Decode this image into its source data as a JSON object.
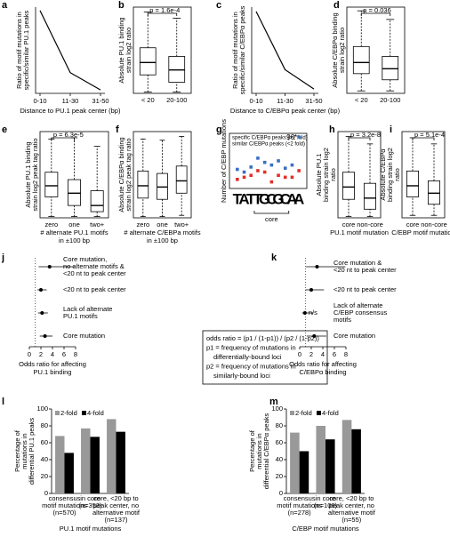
{
  "chart_data": [
    {
      "panel": "a",
      "type": "line",
      "categories": [
        "0-10",
        "11-30",
        "31-50"
      ],
      "values": [
        4.4,
        2.6,
        2.1
      ],
      "ylim": [
        2,
        4.5
      ],
      "color": "#000000",
      "ylabel": [
        "Ratio of motif mutations in",
        "specific/similar PU.1 peaks"
      ],
      "xlabel": [
        "Distance to PU.1 peak center (bp)"
      ]
    },
    {
      "panel": "b",
      "type": "box",
      "categories": [
        "< 20",
        "20-100"
      ],
      "ylim": [
        0,
        7
      ],
      "ptext": "p = 1.6e-4",
      "boxes": [
        {
          "low": 0.1,
          "q1": 1.5,
          "median": 2.5,
          "q3": 3.7,
          "high": 6.6
        },
        {
          "low": 0.1,
          "q1": 0.9,
          "median": 1.9,
          "q3": 3.0,
          "high": 6.1
        }
      ],
      "ylabel": [
        "Absolute PU.1 binding",
        "strain log2 ratio"
      ]
    },
    {
      "panel": "c",
      "type": "line",
      "categories": [
        "0-10",
        "11-30",
        "31-50"
      ],
      "values": [
        5.0,
        2.3,
        1.4
      ],
      "ylim": [
        1.2,
        5.2
      ],
      "color": "#000000",
      "ylabel": [
        "Ratio of motif mutations in",
        "specific/similar C/EBPα peaks"
      ],
      "xlabel": [
        "Distance to C/EBPα peak center (bp)"
      ]
    },
    {
      "panel": "d",
      "type": "box",
      "categories": [
        "< 20",
        "20-100"
      ],
      "ylim": [
        0,
        7
      ],
      "ptext": "p = 0.036",
      "boxes": [
        {
          "low": 0.2,
          "q1": 1.6,
          "median": 2.5,
          "q3": 3.8,
          "high": 6.7
        },
        {
          "low": 0.2,
          "q1": 1.1,
          "median": 2.0,
          "q3": 3.0,
          "high": 6.0
        }
      ],
      "ylabel": [
        "Absolute C/EBPα binding",
        "strain log2 ratio"
      ]
    },
    {
      "panel": "e",
      "type": "box",
      "categories": [
        "zero",
        "one",
        "two+"
      ],
      "ylim": [
        0,
        7
      ],
      "ptext": "p = 6.3e-5",
      "boxes": [
        {
          "low": 0.1,
          "q1": 1.7,
          "median": 2.6,
          "q3": 3.7,
          "high": 6.4
        },
        {
          "low": 0.1,
          "q1": 1.0,
          "median": 2.0,
          "q3": 3.1,
          "high": 6.5
        },
        {
          "low": 0.1,
          "q1": 0.5,
          "median": 1.0,
          "q3": 2.2,
          "high": 5.8
        }
      ],
      "ylabel": [
        "Absolute PU.1 binding",
        "strain log2 peak tag ratio"
      ],
      "xlabel": [
        "# alternate PU.1 motifs",
        "in ±100 bp"
      ]
    },
    {
      "panel": "f",
      "type": "box",
      "categories": [
        "zero",
        "one",
        "two+"
      ],
      "ylim": [
        0,
        7
      ],
      "ptext": "",
      "boxes": [
        {
          "low": 0.1,
          "q1": 1.6,
          "median": 2.6,
          "q3": 3.8,
          "high": 6.4
        },
        {
          "low": 0.1,
          "q1": 1.5,
          "median": 2.5,
          "q3": 3.6,
          "high": 6.3
        },
        {
          "low": 0.2,
          "q1": 2.0,
          "median": 3.0,
          "q3": 4.2,
          "high": 6.6
        }
      ],
      "ylabel": [
        "Absolute C/EBPα binding",
        "strain log2 peak tag ratio"
      ],
      "xlabel": [
        "# alternate C/EBPa motifs",
        "in ±100 bp"
      ]
    },
    {
      "panel": "g",
      "type": "scatter",
      "categories": [
        "T",
        "A",
        "T",
        "T",
        "G",
        "C",
        "G",
        "C",
        "A",
        "A"
      ],
      "ylim": [
        4,
        120
      ],
      "log_scale": true,
      "ylabel": [
        "Number of C/EBP mutations"
      ],
      "xlabel": [
        "core"
      ],
      "annotation": "96*",
      "series": [
        {
          "name": "specific C/EBPα peaks (>2 fold)",
          "color": "#3a6fc4",
          "values": [
            13,
            11,
            15,
            26,
            20,
            17,
            22,
            14,
            17,
            96
          ]
        },
        {
          "name": "similar C/EBPα peaks (<2 fold)",
          "color": "#e0302a",
          "values": [
            7,
            8,
            9,
            12,
            11,
            6,
            9,
            8,
            8,
            12
          ]
        }
      ]
    },
    {
      "panel": "h",
      "type": "box",
      "categories": [
        "core",
        "non-core"
      ],
      "ylim": [
        0,
        7
      ],
      "ptext": "p = 3.2e-8",
      "boxes": [
        {
          "low": 0.1,
          "q1": 1.5,
          "median": 2.5,
          "q3": 3.7,
          "high": 6.6
        },
        {
          "low": 0.1,
          "q1": 0.7,
          "median": 1.6,
          "q3": 2.8,
          "high": 6.0
        }
      ],
      "ylabel": [
        "Absolute PU.1",
        "binding strain log2",
        "ratio"
      ],
      "xlabel": [
        "PU.1 motif mutation"
      ]
    },
    {
      "panel": "i",
      "type": "box",
      "categories": [
        "core",
        "non-core"
      ],
      "ylim": [
        0,
        7
      ],
      "ptext": "p = 5.1e-4",
      "boxes": [
        {
          "low": 0.2,
          "q1": 1.7,
          "median": 2.6,
          "q3": 3.8,
          "high": 6.5
        },
        {
          "low": 0.2,
          "q1": 1.1,
          "median": 2.0,
          "q3": 3.0,
          "high": 6.0
        }
      ],
      "ylabel": [
        "Absolute C/EBPα",
        "binding strain log2",
        "ratio"
      ],
      "xlabel": [
        "C/EBP motif mutation"
      ]
    },
    {
      "panel": "j",
      "type": "forest",
      "xlim": [
        0,
        8
      ],
      "xticks": [
        0,
        2,
        4,
        6,
        8
      ],
      "refline": 1,
      "rows": [
        {
          "label": [
            "Core mutation,",
            "no alternate motifs &",
            "<20 nt to peak center"
          ],
          "value": 3.5,
          "lower": 1.6,
          "upper": 7.8
        },
        {
          "label": [
            "<20 nt to peak center"
          ],
          "value": 2.0,
          "lower": 1.4,
          "upper": 3.0
        },
        {
          "label": [
            "Lack of alternate",
            "PU.1 motifs"
          ],
          "value": 2.2,
          "lower": 1.5,
          "upper": 3.2
        },
        {
          "label": [
            "Core mutation"
          ],
          "value": 2.7,
          "lower": 1.8,
          "upper": 4.0
        }
      ],
      "xlabel": [
        "Odds ratio for affecting",
        "PU.1 binding"
      ]
    },
    {
      "panel": "k",
      "type": "forest",
      "xlim": [
        0,
        8
      ],
      "xticks": [
        0,
        2,
        4,
        6,
        8
      ],
      "refline": 1,
      "rows": [
        {
          "label": [
            "Core mutation &",
            "<20 nt to peak center"
          ],
          "value": 3.0,
          "lower": 1.1,
          "upper": 7.9
        },
        {
          "label": [
            "<20 nt to peak center"
          ],
          "value": 2.0,
          "lower": 1.0,
          "upper": 4.2
        },
        {
          "label": [
            "Lack of alternate",
            "C/EBP consensus",
            "motifs"
          ],
          "value": 0.9,
          "lower": 0.4,
          "upper": 2.4,
          "note": "n/s"
        },
        {
          "label": [
            "Core mutation"
          ],
          "value": 2.5,
          "lower": 1.2,
          "upper": 4.6
        }
      ],
      "xlabel": [
        "Odds ratio for affecting",
        "C/EBPα binding"
      ]
    },
    {
      "panel": "l",
      "type": "bar",
      "ylim": [
        0,
        100
      ],
      "yticks": [
        0,
        20,
        40,
        60,
        80,
        100
      ],
      "categories": [
        [
          "consensus",
          "motif mutations",
          "(n=570)"
        ],
        [
          "in core",
          "(n=353)"
        ],
        [
          "core, <20 bp to",
          "peak center, no",
          "alternative motif",
          "(n=137)"
        ]
      ],
      "series": [
        {
          "name": "2-fold",
          "color": "#999999",
          "values": [
            68,
            77,
            88
          ]
        },
        {
          "name": "4-fold",
          "color": "#000000",
          "values": [
            48,
            67,
            73
          ]
        }
      ],
      "ylabel": [
        "Percentage of",
        "mutations in",
        "differential PU.1 peaks"
      ],
      "xlabel": [
        "PU.1 motif mutations"
      ]
    },
    {
      "panel": "m",
      "type": "bar",
      "ylim": [
        0,
        100
      ],
      "yticks": [
        0,
        20,
        40,
        60,
        80,
        100
      ],
      "categories": [
        [
          "consensus",
          "motif mutations",
          "(n=278)"
        ],
        [
          "in core",
          "(n=106)"
        ],
        [
          "core, <20 bp to",
          "peak center, no",
          "alternative motif",
          "(n=55)"
        ]
      ],
      "series": [
        {
          "name": "2-fold",
          "color": "#999999",
          "values": [
            72,
            80,
            87
          ]
        },
        {
          "name": "4-fold",
          "color": "#000000",
          "values": [
            50,
            64,
            76
          ]
        }
      ],
      "ylabel": [
        "Percentage of",
        "mutations in",
        "differential C/EBPα peaks"
      ],
      "xlabel": [
        "C/EBP motif mutations"
      ]
    }
  ],
  "formula": [
    "odds ratio = (p1 / (1-p1)) / (p2 / (1-p2))",
    "p1 = frequency of mutations in",
    "differentially-bound loci",
    "p2 = frequency of mutations in",
    "similarly-bound loci"
  ]
}
